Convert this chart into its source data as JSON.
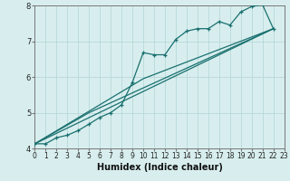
{
  "xlabel": "Humidex (Indice chaleur)",
  "xlim": [
    0,
    23
  ],
  "ylim": [
    4,
    8
  ],
  "bg_color": "#d8eeee",
  "grid_color": "#b8d8d8",
  "line_color": "#1a7070",
  "xticks": [
    0,
    1,
    2,
    3,
    4,
    5,
    6,
    7,
    8,
    9,
    10,
    11,
    12,
    13,
    14,
    15,
    16,
    17,
    18,
    19,
    20,
    21,
    22,
    23
  ],
  "yticks": [
    4,
    5,
    6,
    7,
    8
  ],
  "series": [
    [
      0,
      4.13
    ],
    [
      1,
      4.13
    ],
    [
      2,
      4.3
    ],
    [
      3,
      4.37
    ],
    [
      4,
      4.5
    ],
    [
      5,
      4.68
    ],
    [
      6,
      4.87
    ],
    [
      7,
      5.0
    ],
    [
      8,
      5.22
    ],
    [
      9,
      5.85
    ],
    [
      10,
      6.68
    ],
    [
      11,
      6.62
    ],
    [
      12,
      6.62
    ],
    [
      13,
      7.05
    ],
    [
      14,
      7.28
    ],
    [
      15,
      7.35
    ],
    [
      16,
      7.35
    ],
    [
      17,
      7.55
    ],
    [
      18,
      7.45
    ],
    [
      19,
      7.82
    ],
    [
      20,
      7.97
    ],
    [
      21,
      8.02
    ],
    [
      22,
      7.35
    ]
  ],
  "line_straight": [
    [
      0,
      4.13
    ],
    [
      22,
      7.35
    ]
  ],
  "line_seg1": [
    [
      0,
      4.13
    ],
    [
      10,
      5.95
    ],
    [
      22,
      7.35
    ]
  ],
  "line_seg2": [
    [
      0,
      4.13
    ],
    [
      5,
      5.0
    ],
    [
      22,
      7.35
    ]
  ]
}
